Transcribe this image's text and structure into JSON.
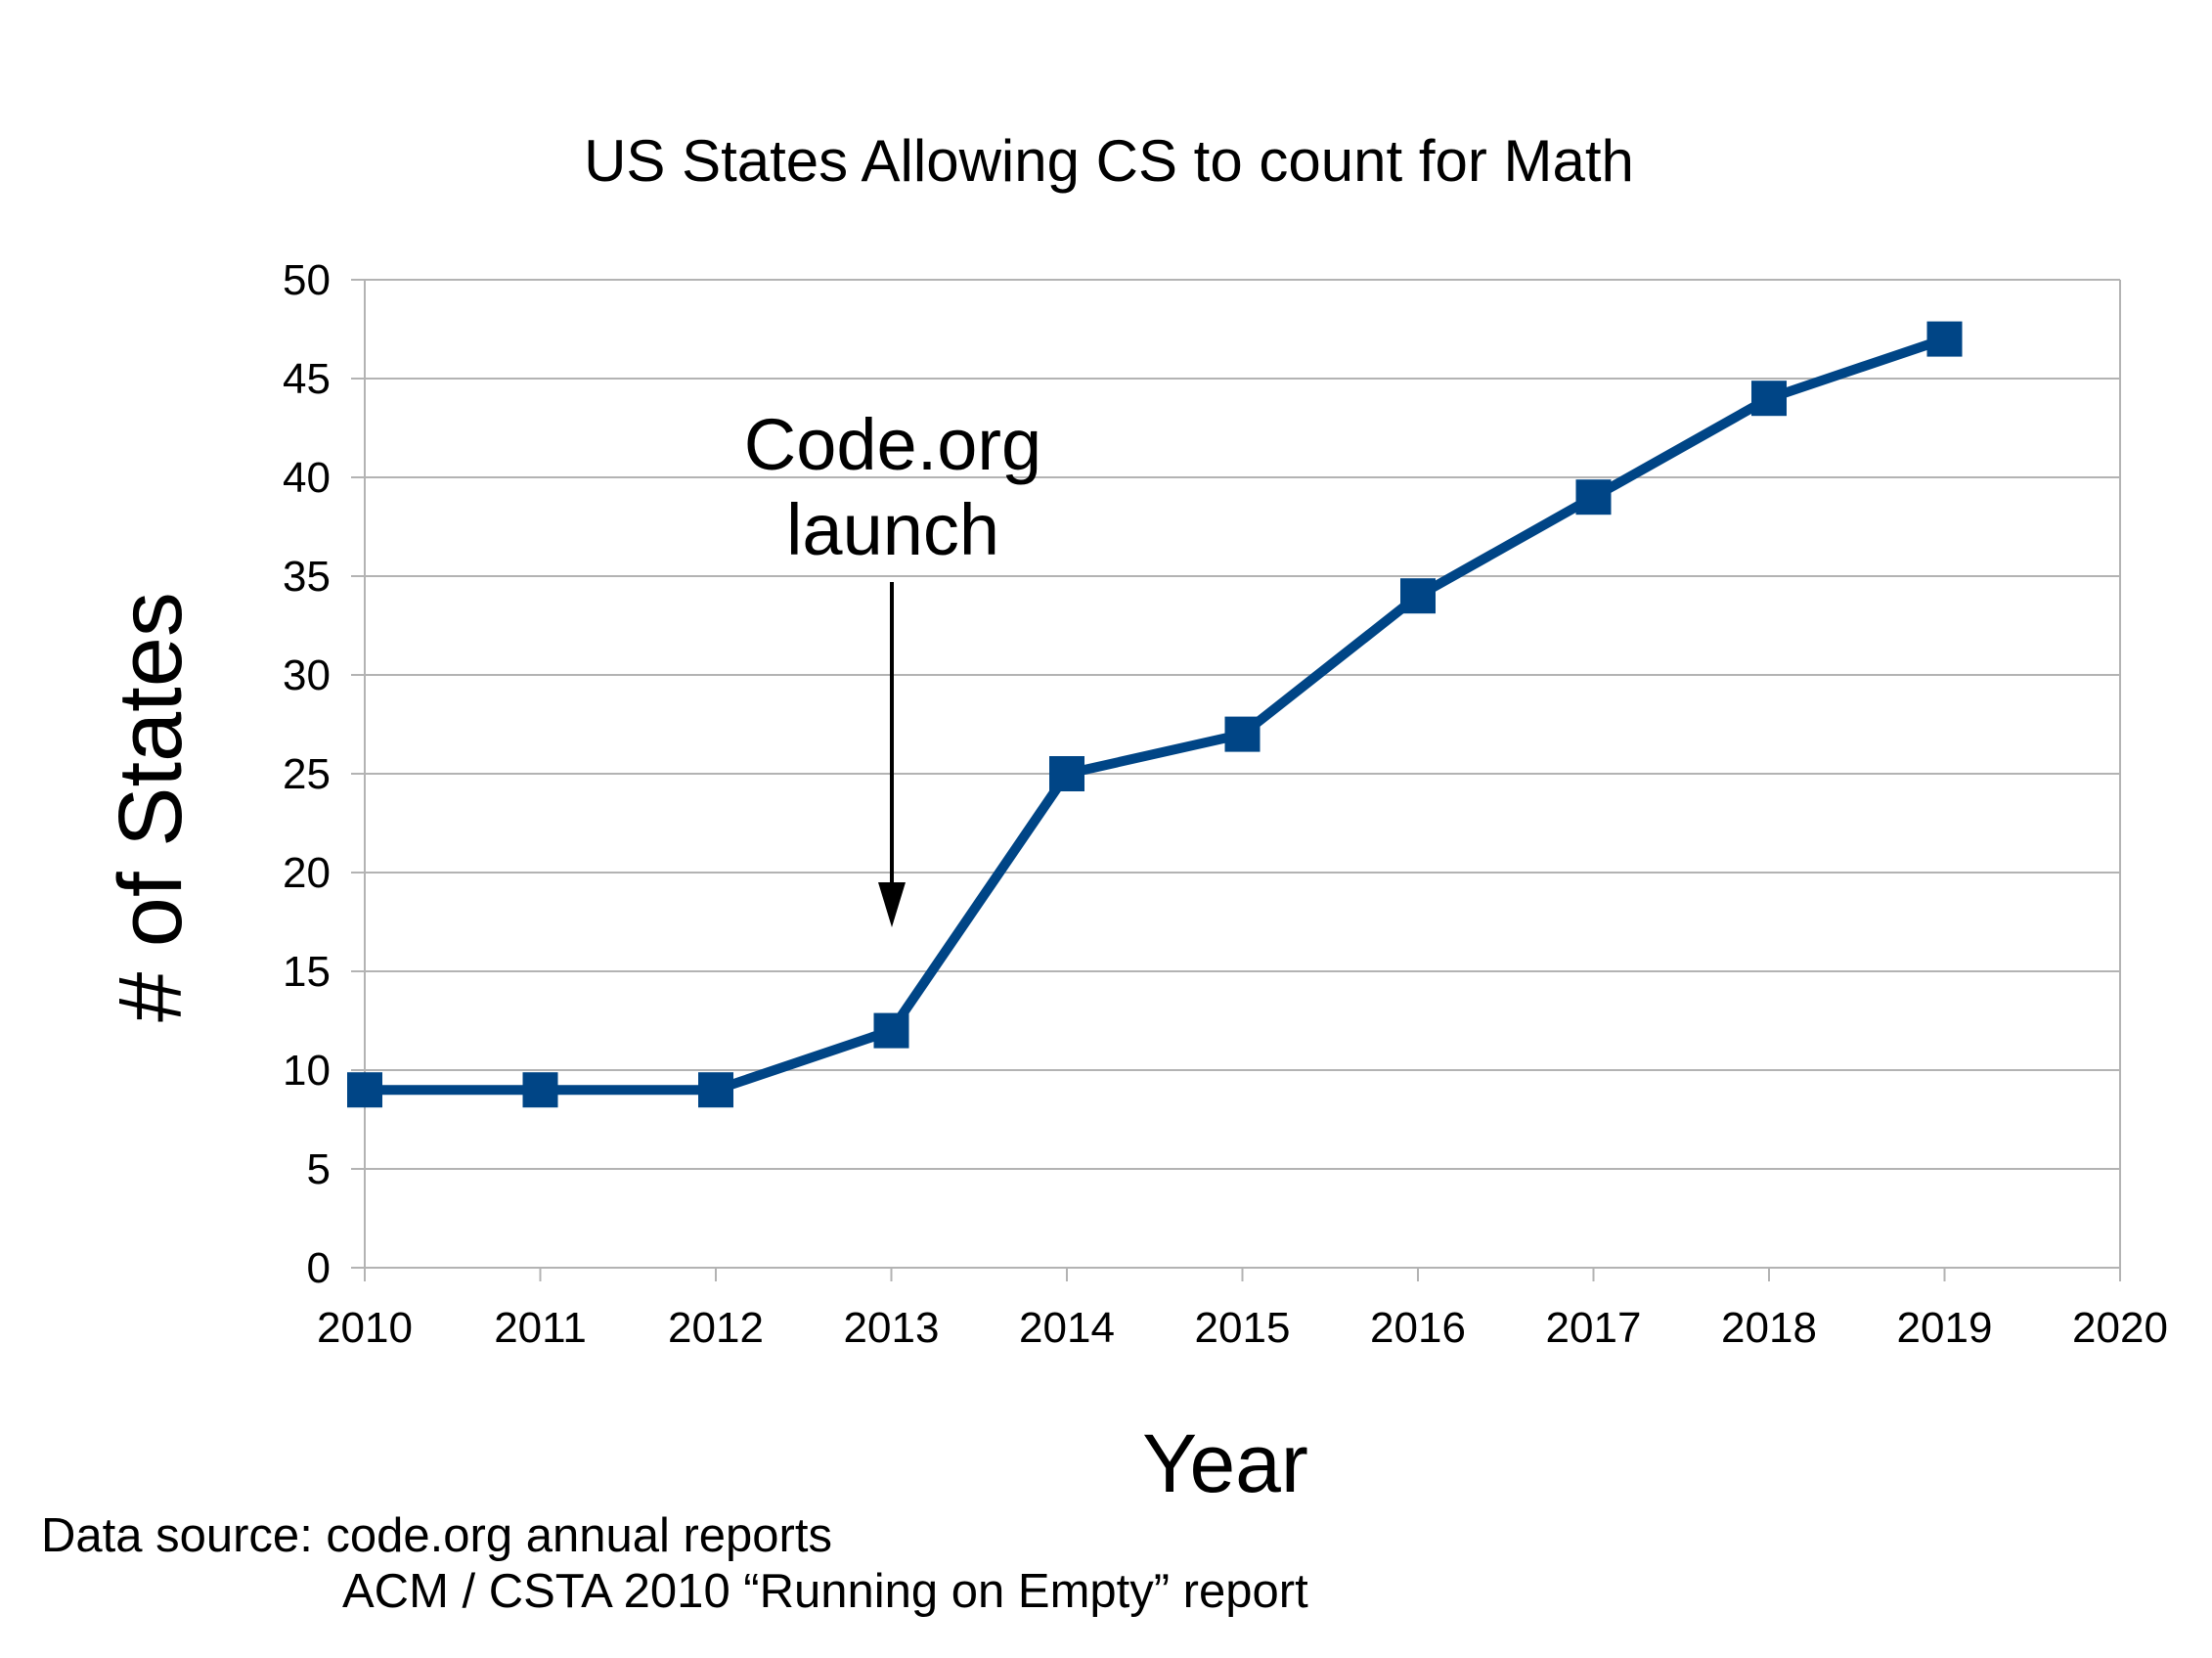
{
  "chart_data": {
    "type": "line",
    "title": "US States Allowing CS to count for Math",
    "xlabel": "Year",
    "ylabel": "# of States",
    "x": [
      2010,
      2011,
      2012,
      2013,
      2014,
      2015,
      2016,
      2017,
      2018,
      2019
    ],
    "series": [
      {
        "values": [
          9,
          9,
          9,
          12,
          25,
          27,
          34,
          39,
          44,
          47
        ],
        "color": "#004586"
      }
    ],
    "xlim": [
      2010,
      2020
    ],
    "ylim": [
      0,
      50
    ],
    "xticks": [
      "2010",
      "2011",
      "2012",
      "2013",
      "2014",
      "2015",
      "2016",
      "2017",
      "2018",
      "2019",
      "2020"
    ],
    "yticks": [
      "0",
      "5",
      "10",
      "15",
      "20",
      "25",
      "30",
      "35",
      "40",
      "45",
      "50"
    ],
    "grid": true,
    "marker": "square",
    "annotation": {
      "line1": "Code.org",
      "line2": "launch",
      "x": 2013
    },
    "source": {
      "line1": "Data source: code.org annual reports",
      "line2": "ACM / CSTA 2010 “Running on Empty” report"
    }
  }
}
